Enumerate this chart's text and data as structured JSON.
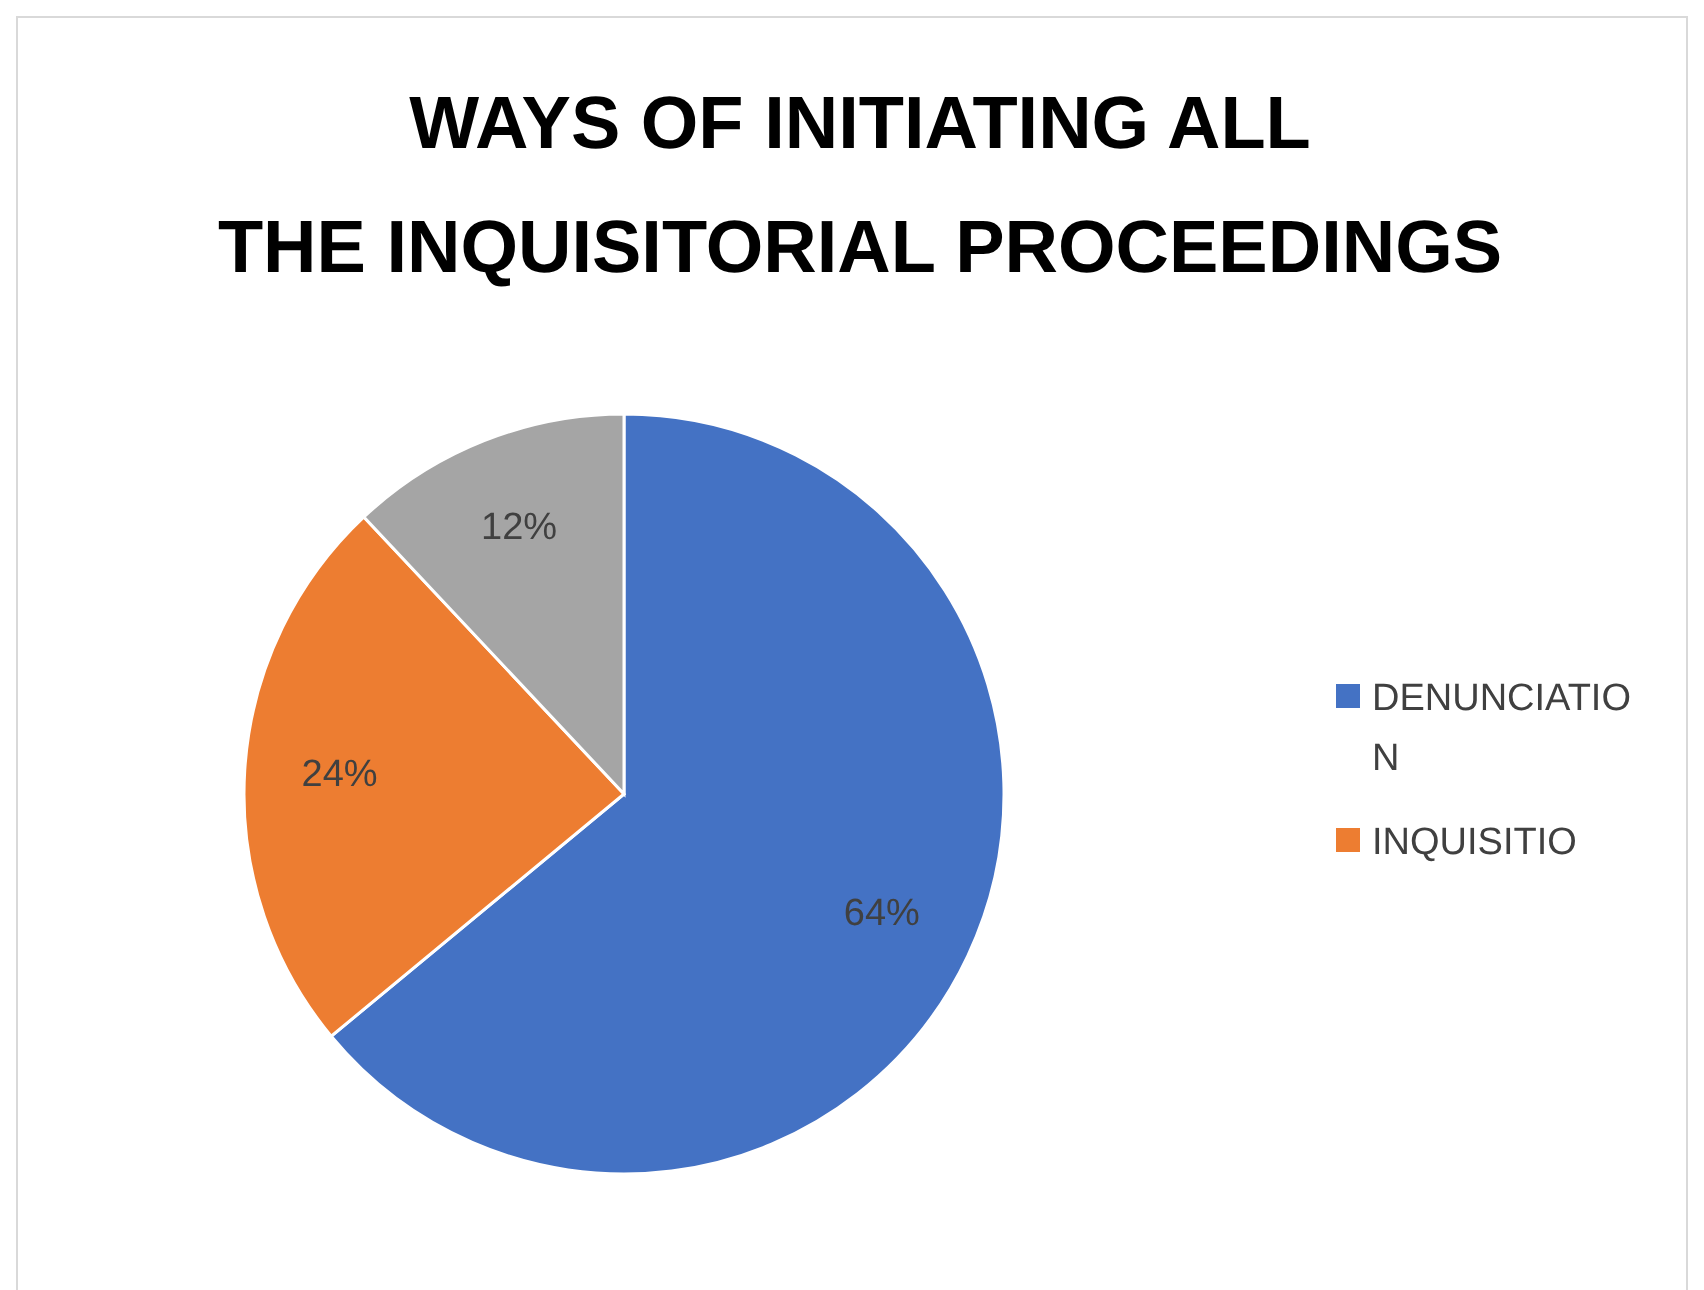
{
  "chart_data": {
    "type": "pie",
    "title": "WAYS OF INITIATING ALL THE INQUISITORIAL PROCEEDINGS",
    "categories": [
      "DENUNCIATION",
      "INQUISITIO",
      null
    ],
    "values": [
      64,
      24,
      12
    ],
    "value_labels": [
      "64%",
      "24%",
      "12%"
    ],
    "colors": [
      "#4472c4",
      "#ed7d31",
      "#a5a5a5"
    ],
    "legend": "right"
  }
}
